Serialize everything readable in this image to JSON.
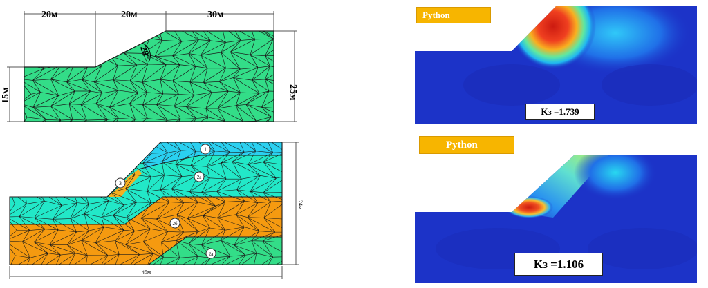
{
  "top_mesh": {
    "dim_top": [
      "20м",
      "20м",
      "30м"
    ],
    "dim_left": "15м",
    "dim_right": "25м",
    "angle": "28°",
    "colors": {
      "mesh": "#33dd88",
      "line": "#1a1a1a"
    }
  },
  "layered_mesh": {
    "labels": [
      "1",
      "2а",
      "3",
      "2б",
      "2а"
    ],
    "dim_right": "24м",
    "dim_bottom": "45м",
    "colors": {
      "layer1": "#2ad0f0",
      "layer2a": "#22e8c8",
      "layer2b": "#f59a10",
      "layer3": "#f5b020",
      "layer2a_bottom": "#33dd88"
    }
  },
  "results": [
    {
      "badge": "Python",
      "factor": "Kз =1.739"
    },
    {
      "badge": "Python",
      "factor": "Kз =1.106"
    }
  ],
  "colormap": {
    "low": "#1c33c8",
    "high": "#cc1a10"
  }
}
